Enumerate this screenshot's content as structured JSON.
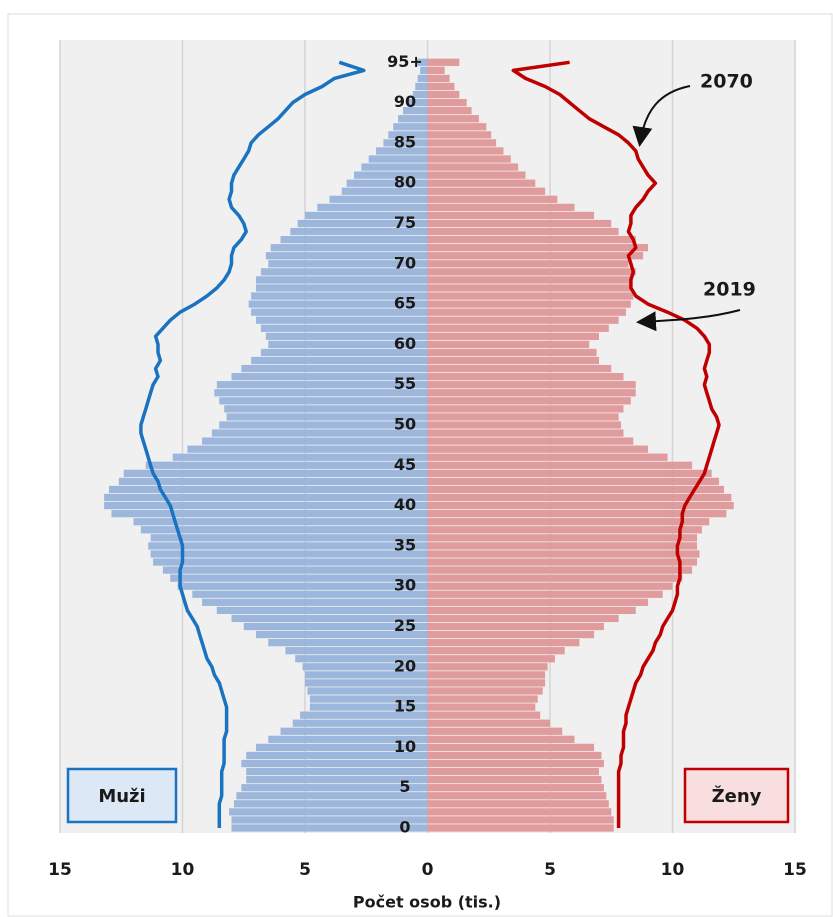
{
  "chart_data": {
    "type": "pyramid",
    "x_label": "Počet osob (tis.)",
    "xlim": [
      -15,
      15
    ],
    "xticks": [
      {
        "value": -15,
        "label": "15"
      },
      {
        "value": -10,
        "label": "10"
      },
      {
        "value": -5,
        "label": "5"
      },
      0,
      5,
      10,
      15
    ],
    "grid": true,
    "categories": [
      "0",
      null,
      null,
      null,
      null,
      "5",
      null,
      null,
      null,
      null,
      "10",
      null,
      null,
      null,
      null,
      "15",
      null,
      null,
      null,
      null,
      "20",
      null,
      null,
      null,
      null,
      "25",
      null,
      null,
      null,
      null,
      "30",
      null,
      null,
      null,
      null,
      "35",
      null,
      null,
      null,
      null,
      "40",
      null,
      null,
      null,
      null,
      "45",
      null,
      null,
      null,
      null,
      "50",
      null,
      null,
      null,
      null,
      "55",
      null,
      null,
      null,
      null,
      "60",
      null,
      null,
      null,
      null,
      "65",
      null,
      null,
      null,
      null,
      "70",
      null,
      null,
      null,
      null,
      "75",
      null,
      null,
      null,
      null,
      "80",
      null,
      null,
      null,
      null,
      "85",
      null,
      null,
      null,
      null,
      "90",
      null,
      null,
      null,
      null,
      "95+"
    ],
    "current_label": "2019",
    "series": [
      {
        "name": "Muži",
        "side": "left",
        "color": "#9db7dc",
        "legend_fill": "#dce8f5",
        "legend_border": "#1a73c0",
        "values": [
          8.0,
          8.0,
          8.1,
          7.9,
          7.8,
          7.6,
          7.4,
          7.4,
          7.6,
          7.4,
          7.0,
          6.5,
          6.0,
          5.5,
          5.2,
          4.8,
          4.8,
          4.9,
          5.0,
          5.0,
          5.1,
          5.4,
          5.8,
          6.5,
          7.0,
          7.5,
          8.0,
          8.6,
          9.2,
          9.6,
          10.2,
          10.5,
          10.8,
          11.2,
          11.3,
          11.4,
          11.3,
          11.7,
          12.0,
          12.9,
          13.2,
          13.2,
          13.0,
          12.6,
          12.4,
          11.5,
          10.4,
          9.8,
          9.2,
          8.8,
          8.5,
          8.2,
          8.3,
          8.5,
          8.7,
          8.6,
          8.0,
          7.6,
          7.2,
          6.8,
          6.5,
          6.6,
          6.8,
          7.0,
          7.2,
          7.3,
          7.2,
          7.0,
          7.0,
          6.8,
          6.5,
          6.6,
          6.4,
          6.0,
          5.6,
          5.3,
          5.0,
          4.5,
          4.0,
          3.5,
          3.3,
          3.0,
          2.7,
          2.4,
          2.1,
          1.8,
          1.6,
          1.4,
          1.2,
          1.0,
          0.8,
          0.6,
          0.5,
          0.4,
          0.3,
          0.5
        ]
      },
      {
        "name": "Ženy",
        "side": "right",
        "color": "#e09b9d",
        "legend_fill": "#f8dede",
        "legend_border": "#c00000",
        "values": [
          7.6,
          7.6,
          7.5,
          7.4,
          7.3,
          7.2,
          7.1,
          7.0,
          7.2,
          7.1,
          6.8,
          6.0,
          5.5,
          5.0,
          4.6,
          4.4,
          4.5,
          4.7,
          4.8,
          4.8,
          4.9,
          5.2,
          5.6,
          6.2,
          6.8,
          7.2,
          7.8,
          8.5,
          9.0,
          9.6,
          10.0,
          10.4,
          10.8,
          11.0,
          11.1,
          11.0,
          11.0,
          11.2,
          11.5,
          12.2,
          12.5,
          12.4,
          12.1,
          11.9,
          11.6,
          10.8,
          9.8,
          9.0,
          8.4,
          8.0,
          7.9,
          7.8,
          8.0,
          8.3,
          8.5,
          8.5,
          8.0,
          7.5,
          7.0,
          6.9,
          6.6,
          7.0,
          7.4,
          7.8,
          8.1,
          8.3,
          8.4,
          8.3,
          8.3,
          8.5,
          8.2,
          8.8,
          9.0,
          8.5,
          7.8,
          7.5,
          6.8,
          6.0,
          5.3,
          4.8,
          4.4,
          4.0,
          3.7,
          3.4,
          3.1,
          2.8,
          2.6,
          2.4,
          2.1,
          1.8,
          1.6,
          1.3,
          1.1,
          0.9,
          0.7,
          1.3
        ]
      }
    ],
    "projection": {
      "label": "2070",
      "series": [
        {
          "side": "left",
          "color": "#1a73c0",
          "values": [
            8.5,
            8.5,
            8.5,
            8.5,
            8.4,
            8.4,
            8.4,
            8.4,
            8.3,
            8.3,
            8.3,
            8.3,
            8.2,
            8.2,
            8.2,
            8.2,
            8.3,
            8.4,
            8.5,
            8.7,
            8.8,
            9.0,
            9.1,
            9.2,
            9.3,
            9.4,
            9.6,
            9.8,
            9.9,
            10.0,
            10.1,
            10.1,
            10.1,
            10.0,
            10.0,
            10.0,
            10.1,
            10.2,
            10.3,
            10.4,
            10.5,
            10.7,
            10.9,
            11.0,
            11.2,
            11.3,
            11.4,
            11.5,
            11.6,
            11.7,
            11.7,
            11.6,
            11.5,
            11.4,
            11.3,
            11.2,
            11.0,
            11.1,
            10.9,
            11.0,
            11.0,
            11.1,
            10.8,
            10.5,
            10.1,
            9.5,
            9.0,
            8.6,
            8.3,
            8.1,
            8.0,
            8.0,
            7.9,
            7.6,
            7.4,
            7.5,
            7.7,
            8.0,
            8.1,
            8.0,
            8.0,
            7.9,
            7.7,
            7.5,
            7.3,
            7.2,
            6.9,
            6.5,
            6.1,
            5.8,
            5.5,
            5.0,
            4.3,
            3.8,
            2.6,
            3.6
          ]
        },
        {
          "side": "right",
          "color": "#c00000",
          "values": [
            7.8,
            7.8,
            7.8,
            7.8,
            7.8,
            7.8,
            7.8,
            7.8,
            7.9,
            7.9,
            8.0,
            8.0,
            8.0,
            8.1,
            8.1,
            8.2,
            8.3,
            8.4,
            8.5,
            8.7,
            8.8,
            9.0,
            9.2,
            9.3,
            9.5,
            9.6,
            9.8,
            10.0,
            10.1,
            10.2,
            10.2,
            10.3,
            10.3,
            10.3,
            10.2,
            10.2,
            10.3,
            10.3,
            10.4,
            10.4,
            10.5,
            10.7,
            10.9,
            11.1,
            11.3,
            11.4,
            11.5,
            11.6,
            11.7,
            11.8,
            11.9,
            11.8,
            11.6,
            11.5,
            11.4,
            11.3,
            11.4,
            11.3,
            11.4,
            11.5,
            11.5,
            11.3,
            11.0,
            10.5,
            9.8,
            9.0,
            8.5,
            8.3,
            8.3,
            8.4,
            8.3,
            8.2,
            8.5,
            8.4,
            8.2,
            8.3,
            8.3,
            8.5,
            8.8,
            9.0,
            9.3,
            9.0,
            8.8,
            8.6,
            8.5,
            8.2,
            7.8,
            7.2,
            6.6,
            6.2,
            5.8,
            5.4,
            4.8,
            4.0,
            3.5,
            5.8
          ]
        }
      ]
    }
  }
}
